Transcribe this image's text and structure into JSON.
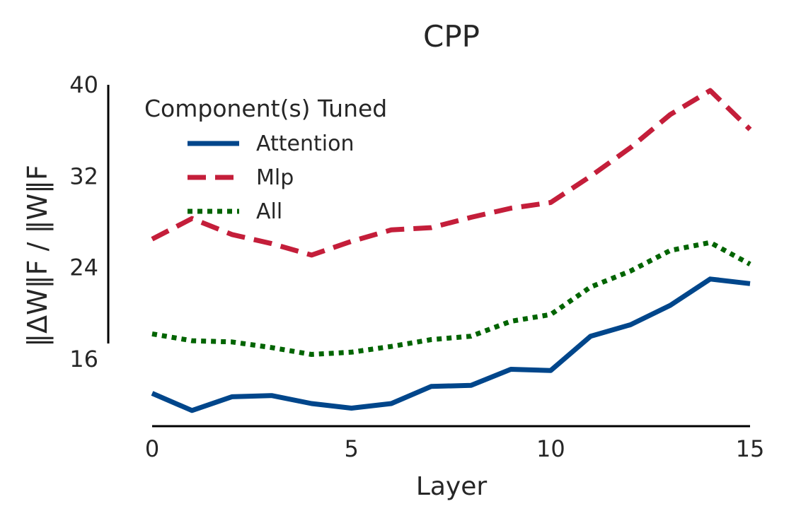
{
  "chart_data": {
    "type": "line",
    "title": "CPP",
    "xlabel": "Layer",
    "ylabel": "‖ΔW‖F / ‖W‖F",
    "x": [
      0,
      1,
      2,
      3,
      4,
      5,
      6,
      7,
      8,
      9,
      10,
      11,
      12,
      13,
      14,
      15
    ],
    "xticks": [
      0,
      5,
      10,
      15
    ],
    "yticks": [
      16,
      24,
      32,
      40
    ],
    "xlim": [
      0,
      15
    ],
    "ylim": [
      10,
      40
    ],
    "grid": false,
    "legend": {
      "title": "Component(s) Tuned",
      "position": "top-left"
    },
    "series": [
      {
        "name": "Attention",
        "color": "#00468b",
        "style": "solid",
        "values": [
          13.0,
          11.5,
          12.7,
          12.8,
          12.1,
          11.7,
          12.1,
          13.6,
          13.7,
          15.1,
          15.0,
          18.0,
          19.0,
          20.7,
          23.0,
          22.6
        ]
      },
      {
        "name": "Mlp",
        "color": "#c41e3a",
        "style": "dashed",
        "values": [
          26.5,
          28.3,
          26.9,
          26.1,
          25.1,
          26.3,
          27.3,
          27.5,
          28.4,
          29.2,
          29.7,
          32.0,
          34.5,
          37.4,
          39.5,
          36.1
        ]
      },
      {
        "name": "All",
        "color": "#006400",
        "style": "dotted",
        "values": [
          18.2,
          17.6,
          17.5,
          17.0,
          16.4,
          16.6,
          17.1,
          17.7,
          18.0,
          19.3,
          19.9,
          22.3,
          23.7,
          25.5,
          26.2,
          24.3
        ]
      }
    ]
  }
}
